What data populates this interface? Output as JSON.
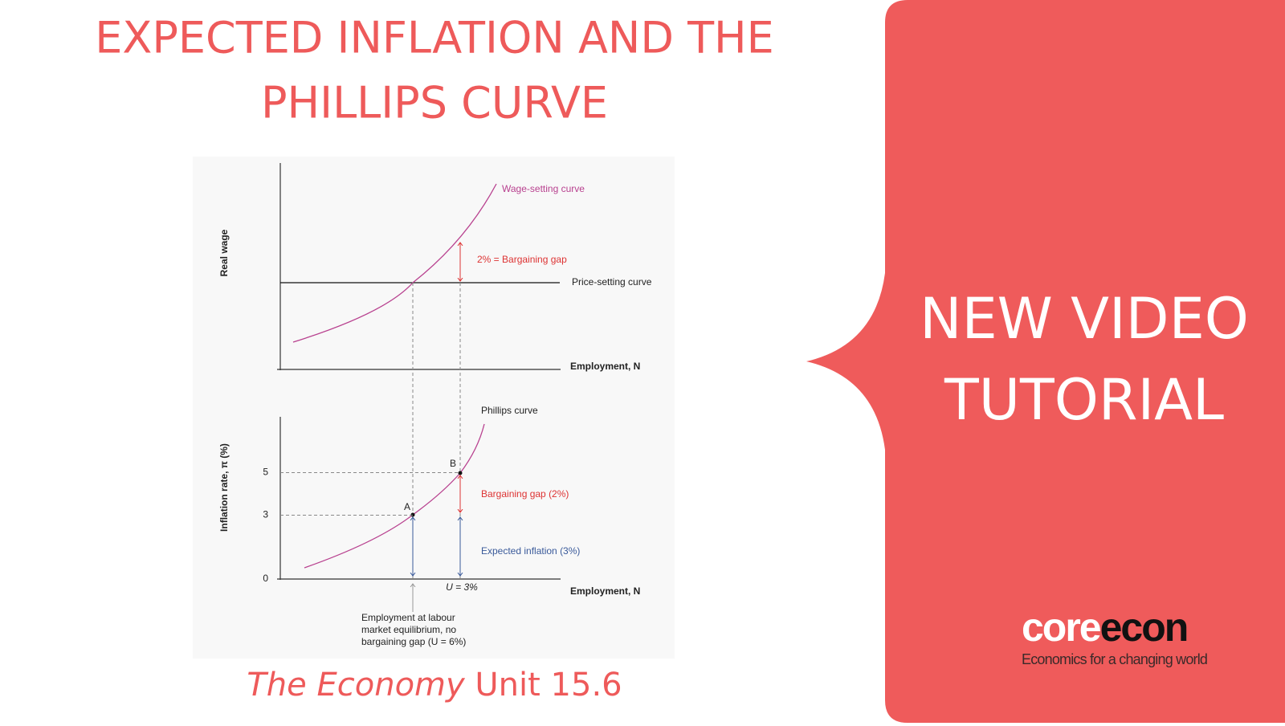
{
  "header": {
    "title_line1": "EXPECTED INFLATION AND THE",
    "title_line2": "PHILLIPS CURVE"
  },
  "diagram": {
    "top": {
      "y_label": "Real wage",
      "x_label": "Employment, N",
      "wage_curve_label": "Wage-setting curve",
      "gap_label": "2% = Bargaining gap",
      "price_curve_label": "Price-setting curve"
    },
    "bottom": {
      "y_label": "Inflation rate, π (%)",
      "x_label": "Employment, N",
      "curve_label": "Phillips curve",
      "point_b": "B",
      "point_a": "A",
      "gap_label": "Bargaining gap (2%)",
      "expected_label": "Expected inflation (3%)",
      "u_label": "U = 3%",
      "yticks": [
        0,
        3,
        5
      ],
      "note": [
        "Employment at labour",
        "market equilibrium, no",
        "bargaining gap (U = 6%)"
      ]
    }
  },
  "caption": {
    "italic": "The Economy",
    "rest": "Unit 15.6"
  },
  "panel": {
    "line1": "NEW VIDEO",
    "line2": "TUTORIAL",
    "logo_core": "core",
    "logo_econ": "econ",
    "tagline": "Economics for a changing world"
  }
}
